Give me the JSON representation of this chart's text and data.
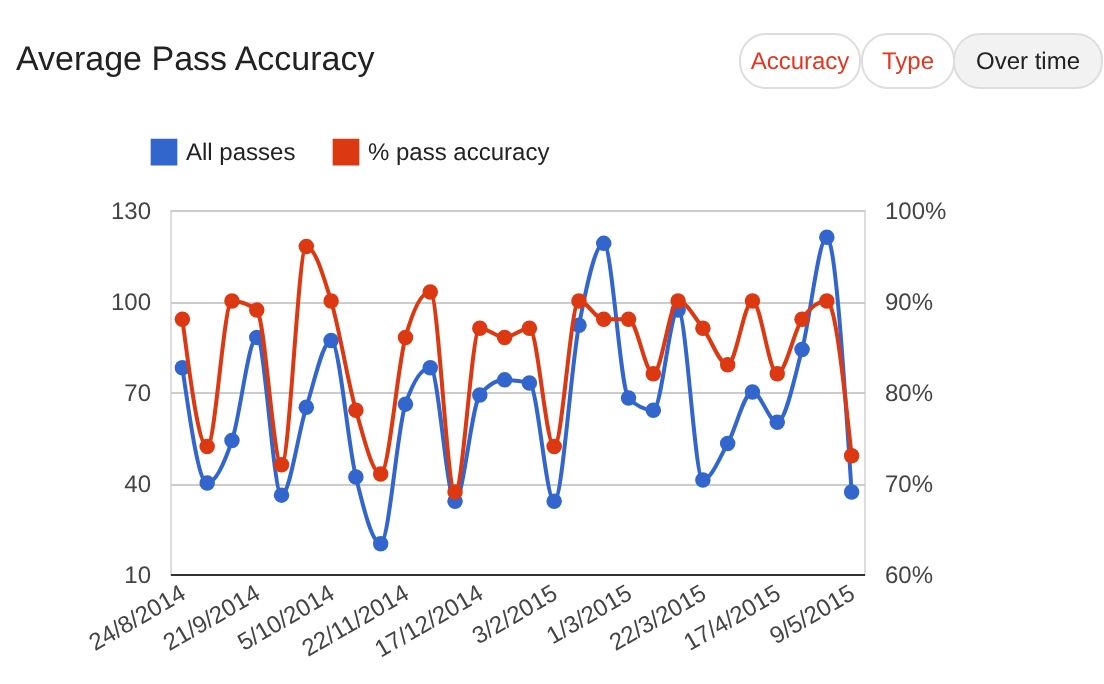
{
  "chart_data": {
    "type": "line",
    "title": "Average Pass Accuracy",
    "annotations": [
      "Accuracy",
      "Type",
      "Over time"
    ],
    "categories": [
      "24/8/2014",
      null,
      null,
      "21/9/2014",
      null,
      null,
      "5/10/2014",
      null,
      null,
      "22/11/2014",
      null,
      null,
      "17/12/2014",
      null,
      null,
      "3/2/2015",
      null,
      null,
      "1/3/2015",
      null,
      null,
      "22/3/2015",
      null,
      null,
      "17/4/2015",
      null,
      null,
      "9/5/2015"
    ],
    "series": [
      {
        "name": "All passes",
        "color": "#3366cc",
        "values": [
          78,
          40,
          54,
          88,
          36,
          65,
          87,
          42,
          20,
          66,
          78,
          34,
          69,
          74,
          73,
          34,
          92,
          119,
          68,
          64,
          97,
          41,
          53,
          70,
          60,
          84,
          121,
          37
        ]
      },
      {
        "name": "% pass accuracy",
        "color": "#dc3912",
        "axis": "y2",
        "values": [
          88,
          74,
          90,
          89,
          72,
          96,
          90,
          78,
          71,
          86,
          91,
          69,
          87,
          86,
          87,
          74,
          90,
          88,
          88,
          82,
          90,
          87,
          83,
          90,
          82,
          88,
          90,
          73
        ]
      }
    ],
    "ylim": [
      10,
      130
    ],
    "yticks": [
      10,
      40,
      70,
      100,
      130
    ],
    "y2lim": [
      60,
      100
    ],
    "y2ticks": [
      {
        "value": 60,
        "label": "60%"
      },
      {
        "value": 70,
        "label": "70%"
      },
      {
        "value": 80,
        "label": "80%"
      },
      {
        "value": 90,
        "label": "90%"
      },
      {
        "value": 100,
        "label": "100%"
      }
    ],
    "grid": "y",
    "legend": "top left",
    "marker": "circle",
    "line_style": "solid"
  }
}
